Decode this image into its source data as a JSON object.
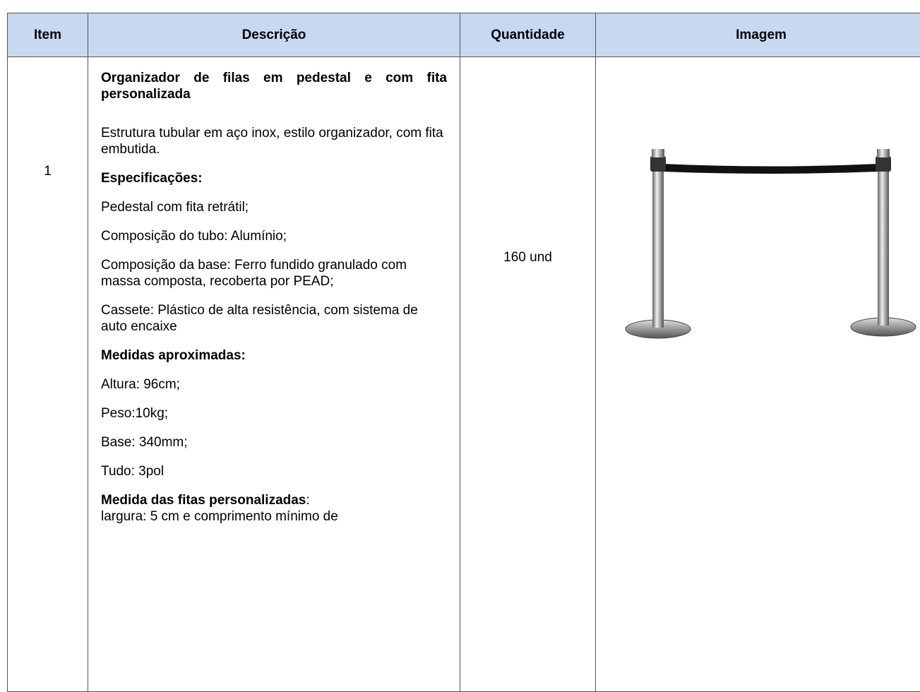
{
  "table": {
    "headers": [
      "Item",
      "Descrição",
      "Quantidade",
      "Imagem"
    ],
    "rows": [
      {
        "item": "1",
        "description": [
          {
            "bold": "Organizador de filas em pedestal e com fita personalizada"
          },
          {
            "text": "Estrutura tubular em aço inox, estilo organizador, com fita embutida."
          },
          {
            "bold": "Especificações:"
          },
          {
            "text": "Pedestal com fita retrátil;"
          },
          {
            "text": "Composição do tubo: Alumínio;"
          },
          {
            "text": "Composição da base: Ferro fundido granulado com massa composta, recoberta por PEAD;"
          },
          {
            "text": "Cassete: Plástico de alta resistência, com sistema de auto encaixe"
          },
          {
            "bold": "Medidas aproximadas:"
          },
          {
            "text": "Altura: 96cm;"
          },
          {
            "text": "Peso:10kg;"
          },
          {
            "text": "Base: 340mm;"
          },
          {
            "text": "Tudo: 3pol"
          },
          {
            "bold": "Medida das fitas personalizadas",
            "suffix": ":"
          },
          {
            "text": "largura: 5 cm e comprimento mínimo de"
          }
        ],
        "quantity": "160 und"
      }
    ]
  }
}
